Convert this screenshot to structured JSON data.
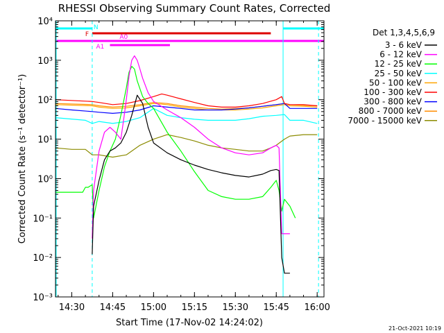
{
  "chart_data": {
    "type": "line",
    "title": "RHESSI Observing Summary Count Rates, Corrected",
    "xlabel": "Start Time (17-Nov-02 14:24:02)",
    "ylabel": "Corrected Count Rate (s⁻¹ detector⁻¹)",
    "ylog": true,
    "xlim": [
      "14:24:02",
      "16:02:30"
    ],
    "ylim": [
      0.001,
      10000
    ],
    "xticks": [
      "14:30",
      "14:45",
      "15:00",
      "15:15",
      "15:30",
      "15:45",
      "16:00"
    ],
    "yticks": [
      "10⁻³",
      "10⁻²",
      "10⁻¹",
      "10⁰",
      "10¹",
      "10²",
      "10³",
      "10⁴"
    ],
    "legend_title": "Det 1,3,4,5,6,9",
    "legend_position": "right",
    "timestamp": "21-Oct-2021 10:19",
    "series": [
      {
        "name": "3 - 6 keV",
        "color": "#000000",
        "x": [
          "14:37:30",
          "14:38",
          "14:40",
          "14:42",
          "14:44",
          "14:46",
          "14:48",
          "14:50",
          "14:52",
          "14:54",
          "14:56",
          "14:58",
          "15:00",
          "15:05",
          "15:10",
          "15:15",
          "15:20",
          "15:25",
          "15:30",
          "15:35",
          "15:40",
          "15:43",
          "15:45",
          "15:46",
          "15:47",
          "15:48",
          "15:49",
          "15:50"
        ],
        "y": [
          0.012,
          0.2,
          0.9,
          3,
          5,
          6,
          8,
          15,
          40,
          130,
          80,
          20,
          8,
          4.5,
          3,
          2.2,
          1.7,
          1.4,
          1.2,
          1.1,
          1.3,
          1.6,
          1.7,
          1.6,
          0.01,
          0.004,
          0.004,
          0.004
        ]
      },
      {
        "name": "6 - 12 keV",
        "color": "#ff00ff",
        "x": [
          "14:37:30",
          "14:38",
          "14:40",
          "14:42",
          "14:44",
          "14:46",
          "14:48",
          "14:49",
          "14:50",
          "14:51",
          "14:52",
          "14:53",
          "14:54",
          "14:55",
          "14:56",
          "14:58",
          "15:00",
          "15:05",
          "15:10",
          "15:15",
          "15:20",
          "15:25",
          "15:30",
          "15:35",
          "15:40",
          "15:43",
          "15:45",
          "15:46",
          "15:47",
          "15:48",
          "15:49",
          "15:50"
        ],
        "y": [
          0.03,
          0.5,
          5,
          15,
          20,
          15,
          10,
          30,
          100,
          400,
          1000,
          1300,
          1000,
          600,
          350,
          150,
          90,
          55,
          35,
          20,
          10,
          6,
          4.5,
          4,
          4.5,
          6,
          7,
          6,
          0.04,
          0.04,
          0.04,
          0.04
        ]
      },
      {
        "name": "12 - 25 keV",
        "color": "#00ff00",
        "x": [
          "14:24:02",
          "14:34",
          "14:35",
          "14:36",
          "14:37:30",
          "14:38",
          "14:40",
          "14:42",
          "14:44",
          "14:46",
          "14:48",
          "14:50",
          "14:51",
          "14:52",
          "14:53",
          "14:54",
          "14:56",
          "14:58",
          "15:00",
          "15:05",
          "15:10",
          "15:15",
          "15:20",
          "15:25",
          "15:30",
          "15:35",
          "15:40",
          "15:43",
          "15:45",
          "15:46",
          "15:47",
          "15:48",
          "15:50",
          "15:52"
        ],
        "y": [
          0.45,
          0.45,
          0.6,
          0.6,
          0.7,
          0.1,
          0.5,
          2,
          5,
          10,
          40,
          200,
          500,
          700,
          600,
          300,
          120,
          80,
          60,
          15,
          5,
          1.5,
          0.5,
          0.35,
          0.3,
          0.3,
          0.35,
          0.6,
          0.9,
          0.5,
          0.15,
          0.3,
          0.2,
          0.1
        ]
      },
      {
        "name": "25 - 50 keV",
        "color": "#00ffff",
        "x": [
          "14:24:02",
          "14:35",
          "14:37:30",
          "14:40",
          "14:45",
          "14:50",
          "14:55",
          "15:00",
          "15:05",
          "15:10",
          "15:15",
          "15:20",
          "15:25",
          "15:30",
          "15:35",
          "15:40",
          "15:45",
          "15:48",
          "15:50",
          "15:55",
          "16:00"
        ],
        "y": [
          35,
          30,
          25,
          28,
          25,
          28,
          35,
          60,
          40,
          35,
          32,
          30,
          30,
          30,
          33,
          38,
          40,
          42,
          30,
          30,
          25
        ]
      },
      {
        "name": "50 - 100 keV",
        "color": "#ffa500",
        "x": [
          "14:24:02",
          "14:37:30",
          "14:40",
          "14:45",
          "14:50",
          "14:55",
          "15:00",
          "15:05",
          "15:10",
          "15:15",
          "15:20",
          "15:25",
          "15:30",
          "15:35",
          "15:40",
          "15:45",
          "15:48",
          "15:50",
          "15:55",
          "16:00"
        ],
        "y": [
          75,
          70,
          65,
          60,
          62,
          70,
          80,
          75,
          65,
          60,
          55,
          55,
          55,
          58,
          62,
          70,
          75,
          70,
          68,
          65
        ]
      },
      {
        "name": "100 - 300 keV",
        "color": "#ff0000",
        "x": [
          "14:24:02",
          "14:37:30",
          "14:40",
          "14:45",
          "14:50",
          "14:55",
          "15:00",
          "15:03",
          "15:05",
          "15:10",
          "15:15",
          "15:20",
          "15:25",
          "15:30",
          "15:35",
          "15:40",
          "15:45",
          "15:47",
          "15:48",
          "15:50",
          "15:55",
          "16:00"
        ],
        "y": [
          100,
          90,
          85,
          75,
          80,
          95,
          120,
          140,
          130,
          105,
          85,
          70,
          65,
          65,
          70,
          80,
          100,
          120,
          80,
          75,
          75,
          70
        ]
      },
      {
        "name": "300 - 800 keV",
        "color": "#0000ff",
        "x": [
          "14:24:02",
          "14:30",
          "14:37:30",
          "14:40",
          "14:45",
          "14:50",
          "14:55",
          "15:00",
          "15:05",
          "15:10",
          "15:15",
          "15:20",
          "15:25",
          "15:30",
          "15:35",
          "15:40",
          "15:45",
          "15:48",
          "15:50",
          "15:55",
          "16:00"
        ],
        "y": [
          60,
          55,
          50,
          48,
          45,
          48,
          55,
          70,
          65,
          60,
          55,
          55,
          55,
          58,
          62,
          68,
          75,
          80,
          60,
          60,
          60
        ]
      },
      {
        "name": "800 - 7000 keV",
        "color": "#ff8c00",
        "x": [
          "14:24:02",
          "14:37:30",
          "14:40",
          "14:45",
          "14:50",
          "14:55",
          "15:00",
          "15:05",
          "15:10",
          "15:15",
          "15:20",
          "15:25",
          "15:30",
          "15:35",
          "15:40",
          "15:45",
          "15:48",
          "15:50",
          "15:55",
          "16:00"
        ],
        "y": [
          80,
          75,
          70,
          65,
          68,
          75,
          85,
          80,
          70,
          65,
          60,
          58,
          60,
          62,
          68,
          75,
          80,
          75,
          72,
          70
        ]
      },
      {
        "name": "7000 - 15000 keV",
        "color": "#8b8b00",
        "x": [
          "14:24:02",
          "14:30",
          "14:35",
          "14:37:30",
          "14:40",
          "14:45",
          "14:50",
          "14:52",
          "14:55",
          "15:00",
          "15:05",
          "15:10",
          "15:15",
          "15:20",
          "15:25",
          "15:30",
          "15:35",
          "15:40",
          "15:43",
          "15:45",
          "15:48",
          "15:50",
          "15:55",
          "16:00"
        ],
        "y": [
          6,
          5.5,
          5.5,
          4,
          4,
          3.5,
          4,
          5,
          7,
          10,
          13,
          11,
          9,
          7,
          6,
          5.5,
          5,
          5,
          6,
          7,
          10,
          12,
          13,
          13
        ]
      }
    ],
    "flags": [
      {
        "label": "N",
        "color": "#00ffff",
        "segments": [
          [
            "14:24:02",
            "14:37:30"
          ],
          [
            "15:47:30",
            "16:02:30"
          ]
        ]
      },
      {
        "label": "F",
        "color": "#dd0000",
        "segments": [
          [
            "14:37:30",
            "15:43:00"
          ]
        ]
      },
      {
        "label": "",
        "color": "#ff00ff",
        "segments": [
          [
            "14:24:02",
            "16:02:30"
          ]
        ]
      },
      {
        "label": "A0",
        "color": "#ff00ff",
        "segments": [
          [
            "14:46",
            "14:54"
          ],
          [
            "14:57:30",
            "14:58"
          ],
          [
            "15:00",
            "15:00:30"
          ]
        ]
      },
      {
        "label": "A1",
        "color": "#ff00ff",
        "segments": [
          [
            "14:44",
            "15:06"
          ]
        ]
      }
    ],
    "markers": [
      {
        "time": "14:37:30",
        "color": "#00ffff"
      },
      {
        "time": "15:47:30",
        "color": "#00ffff"
      },
      {
        "time": "16:00:30",
        "color": "#00ffff"
      }
    ]
  }
}
